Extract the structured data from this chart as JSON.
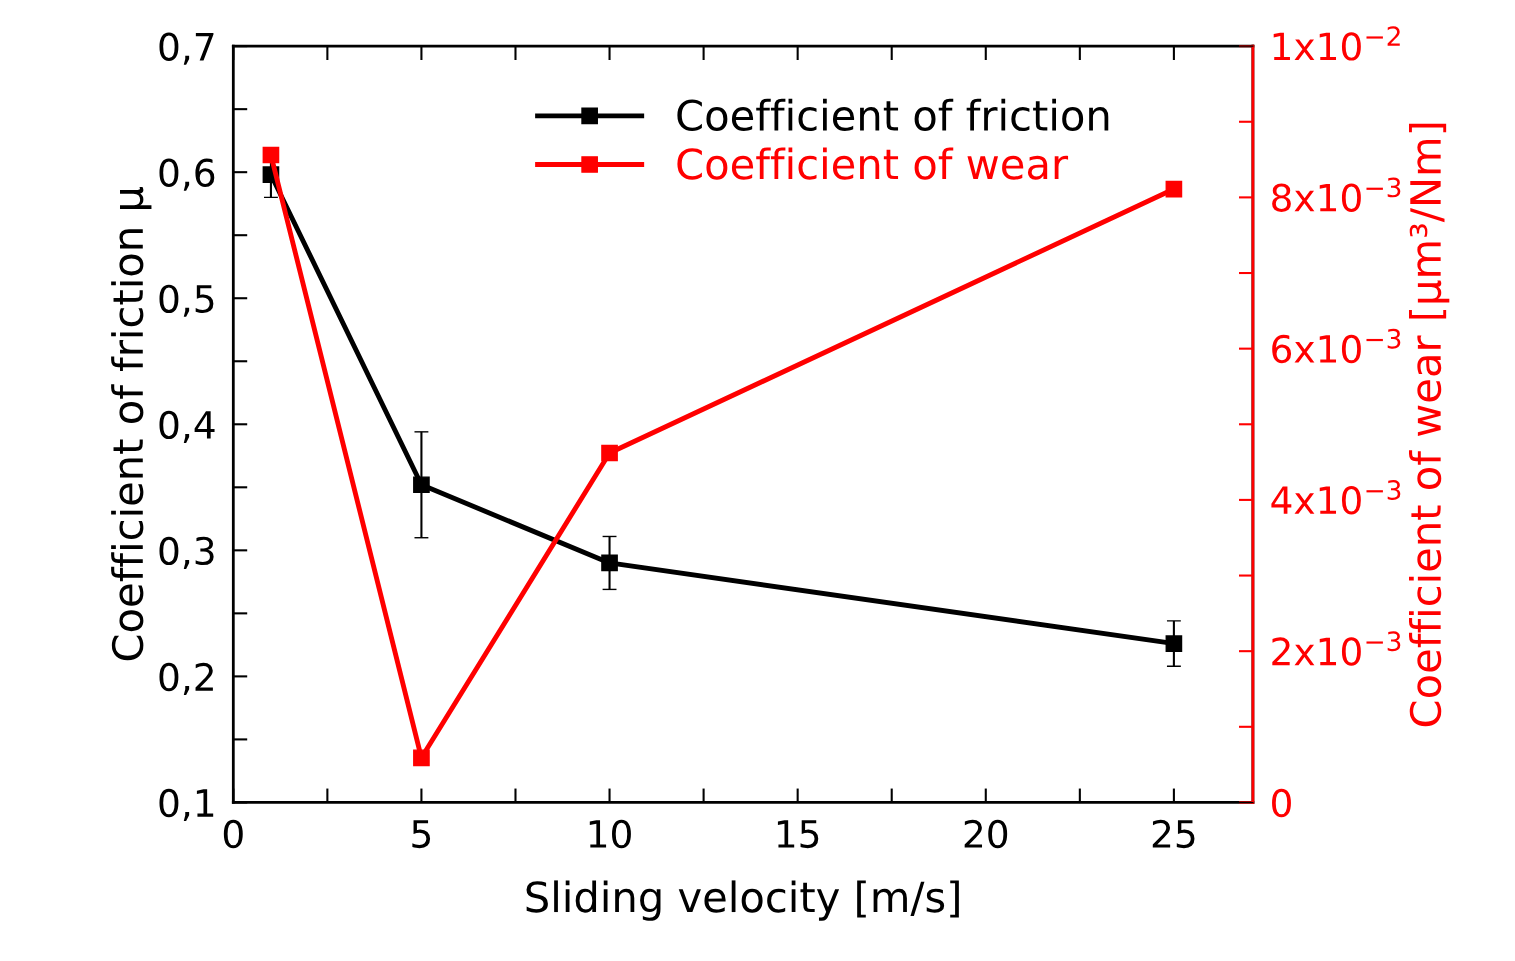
{
  "chart_data": {
    "type": "line",
    "xlabel": "Sliding velocity [m/s]",
    "ylabel": "Coefficient of friction μ",
    "y2label": "Coefficient of wear [µm³/Nm]",
    "xlim": [
      0,
      27.1
    ],
    "xticks": [
      0,
      {
        "value": 2.5,
        "label": null
      },
      5,
      {
        "value": 7.5,
        "label": null
      },
      10,
      {
        "value": 12.5,
        "label": null
      },
      15,
      {
        "value": 17.5,
        "label": null
      },
      20,
      {
        "value": 22.5,
        "label": null
      },
      25
    ],
    "ylim": [
      0.1,
      0.7
    ],
    "yticks": [
      {
        "value": 0.1,
        "label": "0,1"
      },
      {
        "value": 0.15,
        "label": null
      },
      {
        "value": 0.2,
        "label": "0,2"
      },
      {
        "value": 0.25,
        "label": null
      },
      {
        "value": 0.3,
        "label": "0,3"
      },
      {
        "value": 0.35,
        "label": null
      },
      {
        "value": 0.4,
        "label": "0,4"
      },
      {
        "value": 0.45,
        "label": null
      },
      {
        "value": 0.5,
        "label": "0,5"
      },
      {
        "value": 0.55,
        "label": null
      },
      {
        "value": 0.6,
        "label": "0,6"
      },
      {
        "value": 0.65,
        "label": null
      },
      {
        "value": 0.7,
        "label": "0,7"
      }
    ],
    "y2lim": [
      0,
      0.01
    ],
    "y2ticks": [
      0,
      {
        "value": 0.001,
        "label": null
      },
      {
        "value": 0.002,
        "label": "2x10$^{−3}$"
      },
      {
        "value": 0.003,
        "label": null
      },
      {
        "value": 0.004,
        "label": "4x10$^{−3}$"
      },
      {
        "value": 0.005,
        "label": null
      },
      {
        "value": 0.006,
        "label": "6x10$^{−3}$"
      },
      {
        "value": 0.007,
        "label": null
      },
      {
        "value": 0.008,
        "label": "8x10$^{−3}$"
      },
      {
        "value": 0.009,
        "label": null
      },
      {
        "value": 0.01,
        "label": "1x10$^{−2}$"
      }
    ],
    "x": [
      1,
      5,
      10,
      25
    ],
    "marker": "square",
    "line_style": "solid",
    "legend": "top",
    "grid": false,
    "series": [
      {
        "name": "Coefficient of friction",
        "color": "#000000",
        "values": [
          0.598,
          0.352,
          0.29,
          0.226
        ],
        "errors": [
          0.018,
          0.042,
          0.021,
          0.018
        ]
      },
      {
        "name": "Coefficient of wear",
        "color": "#ff0000",
        "axis": "y2",
        "values": [
          0.00856,
          0.00059,
          0.00462,
          0.00811
        ]
      }
    ]
  }
}
